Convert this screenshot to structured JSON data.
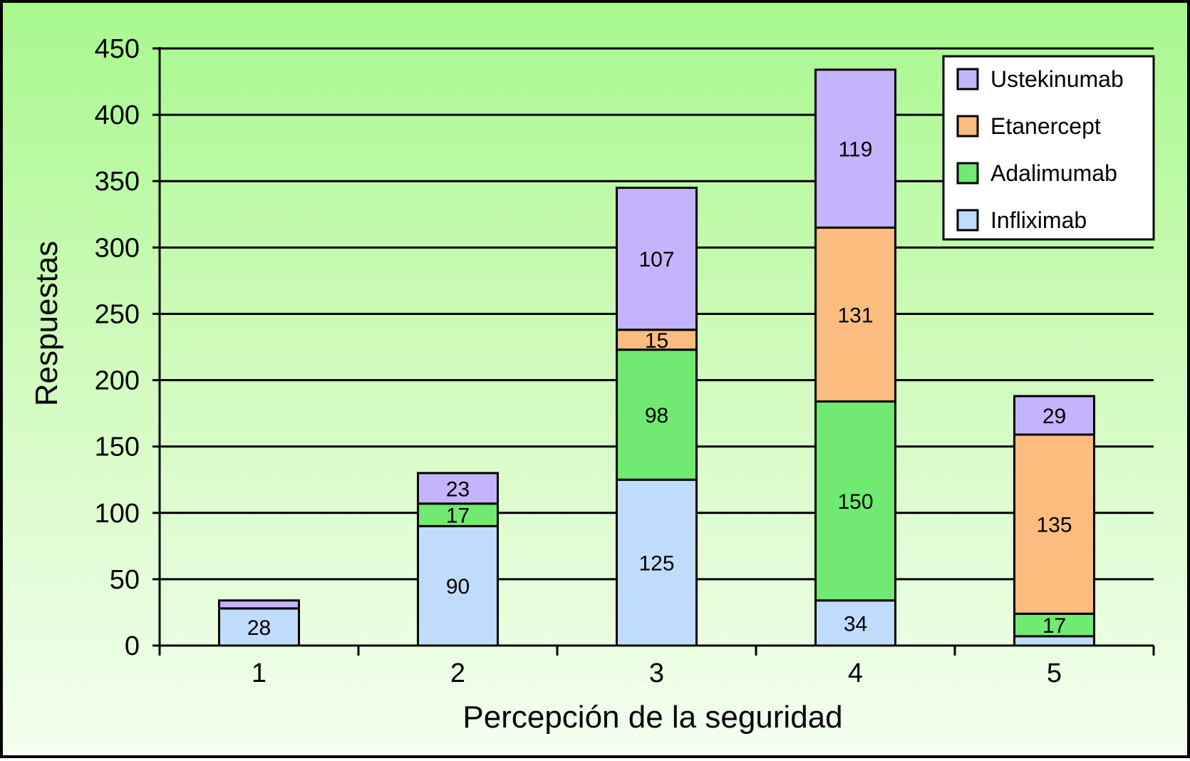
{
  "chart_data": {
    "type": "bar",
    "stacked": true,
    "title": "",
    "xlabel": "Percepción de la seguridad",
    "ylabel": "Respuestas",
    "categories": [
      "1",
      "2",
      "3",
      "4",
      "5"
    ],
    "ylim": [
      0,
      450
    ],
    "yticks": [
      "0",
      "50",
      "100",
      "150",
      "200",
      "250",
      "300",
      "350",
      "400",
      "450"
    ],
    "grid": true,
    "legend_position": "top-right",
    "series": [
      {
        "name": "Infliximab",
        "color": "#c0dcfc",
        "values": [
          28,
          90,
          125,
          34,
          7
        ],
        "labels": [
          "28",
          "90",
          "125",
          "34",
          ""
        ]
      },
      {
        "name": "Adalimumab",
        "color": "#70ea70",
        "values": [
          0,
          17,
          98,
          150,
          17
        ],
        "labels": [
          "",
          "17",
          "98",
          "150",
          "17"
        ]
      },
      {
        "name": "Etanercept",
        "color": "#fcbc80",
        "values": [
          0,
          0,
          15,
          131,
          135
        ],
        "labels": [
          "",
          "",
          "15",
          "131",
          "135"
        ]
      },
      {
        "name": "Ustekinumab",
        "color": "#c4b4fc",
        "values": [
          6,
          23,
          107,
          119,
          29
        ],
        "labels": [
          "",
          "23",
          "107",
          "119",
          "29"
        ]
      }
    ],
    "legend_order": [
      "Ustekinumab",
      "Etanercept",
      "Adalimumab",
      "Infliximab"
    ]
  }
}
